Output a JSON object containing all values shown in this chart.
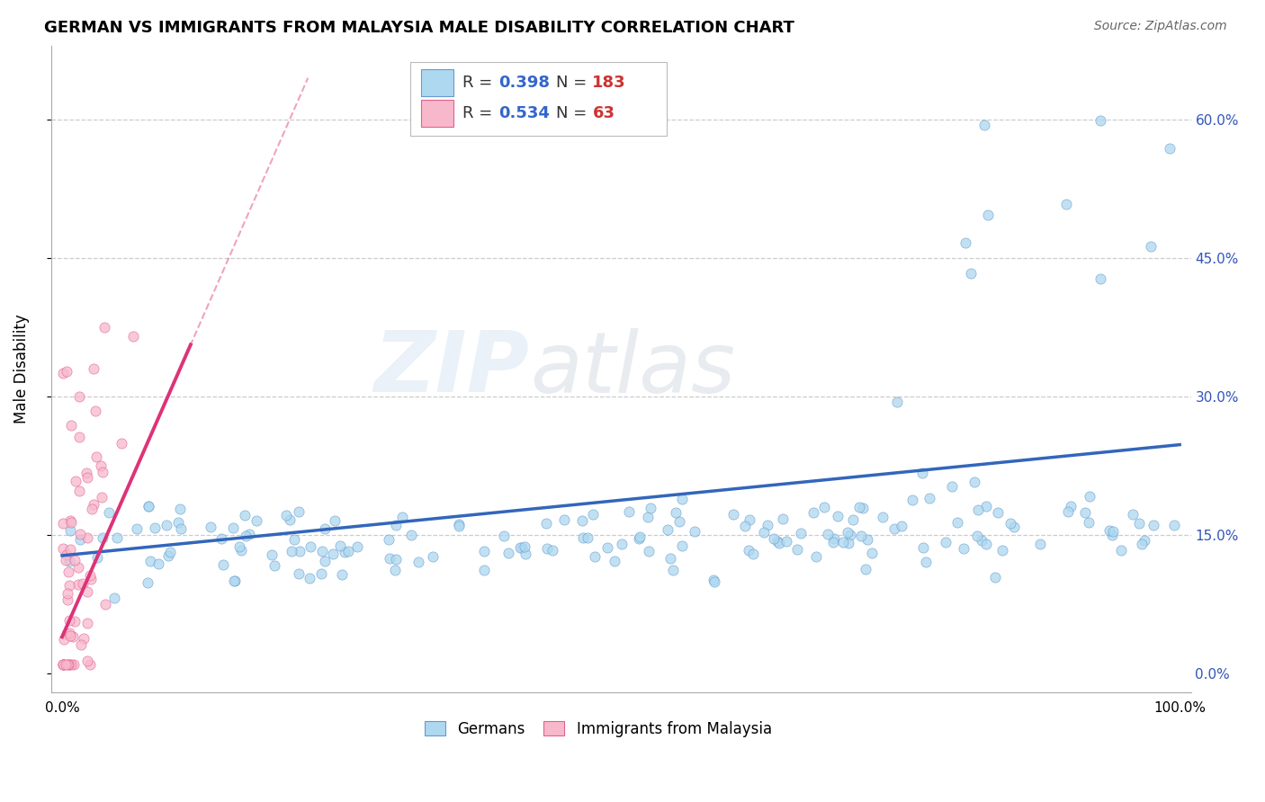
{
  "title": "GERMAN VS IMMIGRANTS FROM MALAYSIA MALE DISABILITY CORRELATION CHART",
  "source": "Source: ZipAtlas.com",
  "ylabel": "Male Disability",
  "xlim": [
    -0.01,
    1.01
  ],
  "ylim": [
    -0.02,
    0.68
  ],
  "xticks": [
    0.0,
    0.2,
    0.4,
    0.6,
    0.8,
    1.0
  ],
  "xticklabels": [
    "0.0%",
    "",
    "",
    "",
    "",
    "100.0%"
  ],
  "yticks": [
    0.0,
    0.15,
    0.3,
    0.45,
    0.6
  ],
  "yticklabels_right": [
    "0.0%",
    "15.0%",
    "30.0%",
    "45.0%",
    "60.0%"
  ],
  "german_R": 0.398,
  "german_N": 183,
  "malaysia_R": 0.534,
  "malaysia_N": 63,
  "blue_fill": "#add8f0",
  "blue_edge": "#6699cc",
  "pink_fill": "#f8b8cc",
  "pink_edge": "#e06090",
  "blue_line": "#3366bb",
  "pink_line": "#dd3377",
  "german_label": "Germans",
  "malaysia_label": "Immigrants from Malaysia",
  "watermark_zip": "ZIP",
  "watermark_atlas": "atlas"
}
